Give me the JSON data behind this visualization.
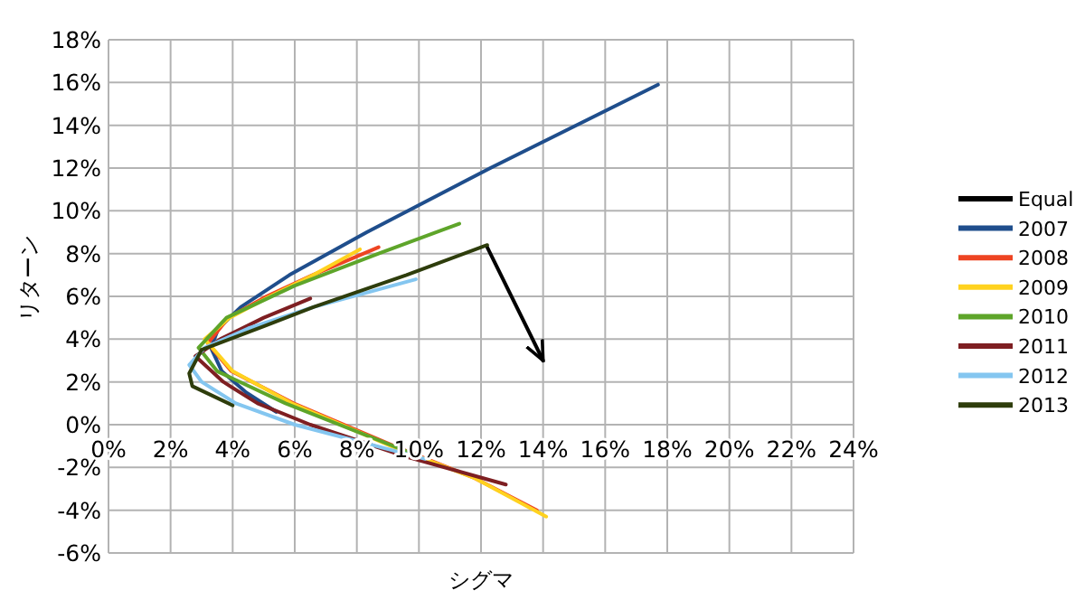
{
  "chart_data": {
    "type": "line",
    "xlabel": "シグマ",
    "ylabel": "リターン",
    "xlim": [
      0,
      24
    ],
    "ylim": [
      -6,
      18
    ],
    "xticks": [
      {
        "value": 0,
        "label": "0%"
      },
      {
        "value": 2,
        "label": "2%"
      },
      {
        "value": 4,
        "label": "4%"
      },
      {
        "value": 6,
        "label": "6%"
      },
      {
        "value": 8,
        "label": "8%"
      },
      {
        "value": 10,
        "label": "10%"
      },
      {
        "value": 12,
        "label": "12%"
      },
      {
        "value": 14,
        "label": "14%"
      },
      {
        "value": 16,
        "label": "16%"
      },
      {
        "value": 18,
        "label": "18%"
      },
      {
        "value": 20,
        "label": "20%"
      },
      {
        "value": 22,
        "label": "22%"
      },
      {
        "value": 24,
        "label": "24%"
      }
    ],
    "yticks": [
      {
        "value": -6,
        "label": "-6%"
      },
      {
        "value": -4,
        "label": "-4%"
      },
      {
        "value": -2,
        "label": "-2%"
      },
      {
        "value": 0,
        "label": "0%"
      },
      {
        "value": 2,
        "label": "2%"
      },
      {
        "value": 4,
        "label": "4%"
      },
      {
        "value": 6,
        "label": "6%"
      },
      {
        "value": 8,
        "label": "8%"
      },
      {
        "value": 10,
        "label": "10%"
      },
      {
        "value": 12,
        "label": "12%"
      },
      {
        "value": 14,
        "label": "14%"
      },
      {
        "value": 16,
        "label": "16%"
      },
      {
        "value": 18,
        "label": "18%"
      }
    ],
    "grid": true,
    "legend": "right",
    "marker": "none",
    "line_style": "solid",
    "series": [
      {
        "name": "Equal",
        "color": "#000000",
        "x": [
          12.2,
          14
        ],
        "values": [
          8.3,
          3.0
        ]
      },
      {
        "name": "2007",
        "color": "#1f4e8c",
        "x": [
          5.4,
          4.44,
          3.65,
          3.3,
          3.54,
          4.26,
          5.83,
          8.32,
          12.3,
          17.7
        ],
        "values": [
          0.6,
          1.5,
          2.5,
          3.6,
          4.5,
          5.5,
          7,
          9,
          12,
          15.9
        ]
      },
      {
        "name": "2008",
        "color": "#ee4422",
        "x": [
          8.7,
          6.58,
          5.09,
          3.86,
          3.2,
          3.96,
          5.96,
          9.2,
          11.8,
          13.8
        ],
        "values": [
          8.3,
          7,
          6,
          5,
          3.8,
          2.5,
          1,
          -1,
          -2.5,
          -4
        ]
      },
      {
        "name": "2009",
        "color": "#ffd21f",
        "x": [
          8.1,
          6.6,
          5.2,
          3.9,
          3.1,
          4.0,
          5.9,
          9.1,
          11.8,
          14.1
        ],
        "values": [
          8.2,
          7,
          6,
          5,
          4,
          2.5,
          1,
          -1,
          -2.5,
          -4.3
        ]
      },
      {
        "name": "2010",
        "color": "#5ea52a",
        "x": [
          11.3,
          8.7,
          6.0,
          3.8,
          2.9,
          3.5,
          5.7,
          9.7
        ],
        "values": [
          9.4,
          8,
          6.5,
          5,
          3.6,
          2.5,
          1,
          -1.3
        ]
      },
      {
        "name": "2011",
        "color": "#7e1f22",
        "x": [
          6.5,
          5.0,
          3.6,
          2.8,
          3.7,
          4.8,
          6.5,
          9.6,
          12.8
        ],
        "values": [
          5.9,
          5,
          4,
          3.2,
          2,
          1,
          0,
          -1.5,
          -2.8
        ]
      },
      {
        "name": "2012",
        "color": "#84c6f0",
        "x": [
          9.9,
          6.6,
          4.5,
          3.1,
          2.6,
          3.0,
          4.1,
          6.0,
          10.2
        ],
        "values": [
          6.8,
          5.5,
          4.5,
          3.6,
          2.8,
          2,
          1,
          0,
          -1.6
        ]
      },
      {
        "name": "2013",
        "color": "#2e3d0c",
        "x": [
          12.2,
          9.6,
          6.6,
          5.0,
          3.0,
          2.6,
          2.7,
          4.0
        ],
        "values": [
          8.4,
          7,
          5.5,
          4.6,
          3.5,
          2.4,
          1.8,
          0.9
        ]
      }
    ]
  }
}
